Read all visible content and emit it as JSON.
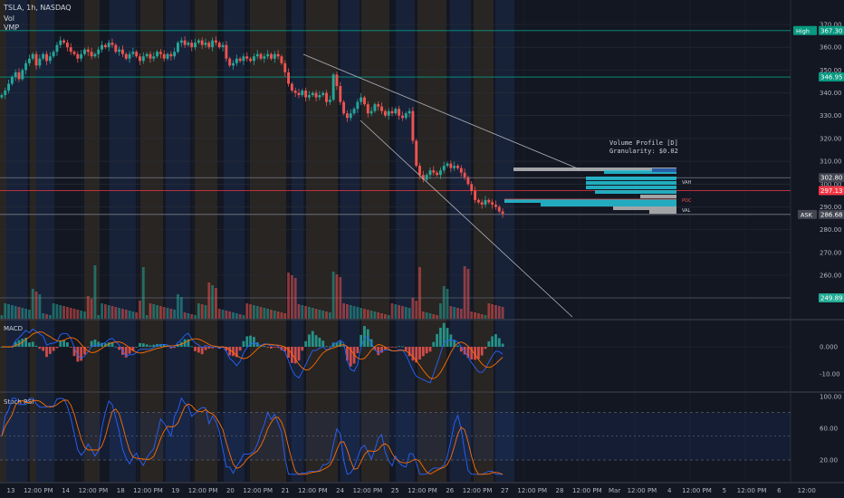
{
  "header": {
    "symbol_line": "TSLA, 1h, NASDAQ",
    "vol_label": "Vol",
    "vmp_label": "VMP"
  },
  "colors": {
    "background": "#131722",
    "up": "#26a69a",
    "down": "#ef5350",
    "band_orange": "#3b3224",
    "band_blue": "#1c2b4a",
    "macd_line": "#2962ff",
    "signal_line": "#ff6d00",
    "stoch_k": "#2962ff",
    "stoch_d": "#ff6d00",
    "level_line": "#089981",
    "price_line": "#f23645",
    "vp_up": "#26c6da",
    "vp_down": "#bdbdbd"
  },
  "chart_data": [
    {
      "type": "candlestick",
      "title": "TSLA, 1h, NASDAQ",
      "ylim": [
        258,
        374
      ],
      "y_ticks": [
        260,
        270,
        280,
        290,
        300,
        310,
        320,
        330,
        340,
        350,
        360,
        370
      ],
      "x_tick_labels": [
        "13",
        "12:00 PM",
        "14",
        "12:00 PM",
        "18",
        "12:00 PM",
        "19",
        "12:00 PM",
        "20",
        "12:00 PM",
        "21",
        "12:00 PM",
        "24",
        "12:00 PM",
        "25",
        "12:00 PM",
        "26",
        "12:00 PM",
        "27",
        "12:00 PM",
        "28",
        "12:00 PM",
        "Mar",
        "12:00 PM",
        "4",
        "12:00 PM",
        "5",
        "12:00 PM",
        "6",
        "12:00"
      ],
      "close": [
        339,
        341,
        344,
        347,
        349,
        346,
        350,
        353,
        355,
        357,
        352,
        355,
        357,
        354,
        356,
        358,
        361,
        363,
        362,
        360,
        358,
        357,
        355,
        357,
        359,
        358,
        356,
        357,
        359,
        361,
        360,
        362,
        361,
        358,
        359,
        357,
        355,
        357,
        358,
        356,
        354,
        356,
        357,
        355,
        356,
        358,
        357,
        355,
        357,
        356,
        358,
        362,
        363,
        361,
        362,
        360,
        362,
        363,
        361,
        362,
        360,
        363,
        362,
        360,
        361,
        355,
        352,
        353,
        355,
        354,
        356,
        355,
        354,
        356,
        357,
        355,
        356,
        357,
        355,
        357,
        356,
        353,
        349,
        344,
        341,
        340,
        339,
        341,
        338,
        339,
        340,
        338,
        339,
        340,
        336,
        337,
        348,
        343,
        336,
        331,
        329,
        331,
        333,
        336,
        338,
        335,
        331,
        332,
        335,
        334,
        332,
        330,
        332,
        331,
        333,
        330,
        329,
        331,
        332,
        319,
        308,
        304,
        302,
        304,
        306,
        305,
        304,
        306,
        308,
        309,
        307,
        308,
        307,
        305,
        303,
        300,
        297,
        293,
        292,
        291,
        293,
        292,
        291,
        290,
        288,
        287
      ],
      "volume_bars": 146,
      "horizontal_levels": [
        {
          "label": "High",
          "value": "367.30",
          "y": 367.3
        },
        {
          "value": "346.95",
          "y": 346.95
        },
        {
          "value": "302.80",
          "y": 302.8
        },
        {
          "value": "297.13",
          "y": 297.13
        },
        {
          "label": "ASK",
          "value": "286.68",
          "y": 286.68
        },
        {
          "value": "249.89",
          "y": 249.89
        }
      ],
      "volume_profile": {
        "title": "Volume Profile [D]",
        "granularity": "Granularity: $0.02",
        "labels": [
          "VAH",
          "POC",
          "VAL"
        ]
      }
    },
    {
      "type": "line",
      "title": "MACD",
      "y_ticks": [
        "0.000",
        "-10.00"
      ],
      "ylim": [
        -15,
        8
      ]
    },
    {
      "type": "line",
      "title": "Stoch RSI",
      "y_ticks": [
        "100.00",
        "60.00",
        "20.00"
      ],
      "ylim": [
        0,
        100
      ]
    }
  ]
}
